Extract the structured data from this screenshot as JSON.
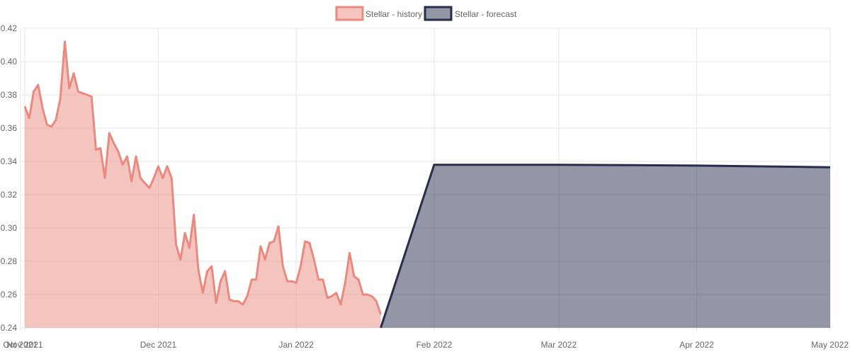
{
  "chart_data": {
    "type": "area",
    "legend": {
      "position": "top"
    },
    "grid": true,
    "y_ticks": [
      "0.24",
      "0.26",
      "0.28",
      "0.30",
      "0.32",
      "0.34",
      "0.36",
      "0.38",
      "0.40",
      "0.42"
    ],
    "ylim": [
      0.24,
      0.42
    ],
    "xlim": [
      "2021-11-01",
      "2022-05-01"
    ],
    "x_ticks": [
      {
        "date": "2021-10-31",
        "label": "Oct 2021"
      },
      {
        "date": "2021-11-01",
        "label": "Nov 2021"
      },
      {
        "date": "2021-12-01",
        "label": "Dec 2021"
      },
      {
        "date": "2022-01-01",
        "label": "Jan 2022"
      },
      {
        "date": "2022-02-01",
        "label": "Feb 2022"
      },
      {
        "date": "2022-03-01",
        "label": "Mar 2022"
      },
      {
        "date": "2022-04-01",
        "label": "Apr 2022"
      },
      {
        "date": "2022-05-01",
        "label": "May 2022"
      }
    ],
    "series": [
      {
        "name": "Stellar - history",
        "color": "#ea8a7f",
        "fill": "rgba(234,138,127,0.5)",
        "points": [
          [
            "2021-11-01",
            0.373
          ],
          [
            "2021-11-02",
            0.366
          ],
          [
            "2021-11-03",
            0.382
          ],
          [
            "2021-11-04",
            0.386
          ],
          [
            "2021-11-05",
            0.372
          ],
          [
            "2021-11-06",
            0.362
          ],
          [
            "2021-11-07",
            0.361
          ],
          [
            "2021-11-08",
            0.365
          ],
          [
            "2021-11-09",
            0.378
          ],
          [
            "2021-11-10",
            0.412
          ],
          [
            "2021-11-11",
            0.384
          ],
          [
            "2021-11-12",
            0.393
          ],
          [
            "2021-11-13",
            0.382
          ],
          [
            "2021-11-14",
            0.381
          ],
          [
            "2021-11-15",
            0.38
          ],
          [
            "2021-11-16",
            0.379
          ],
          [
            "2021-11-17",
            0.347
          ],
          [
            "2021-11-18",
            0.348
          ],
          [
            "2021-11-19",
            0.33
          ],
          [
            "2021-11-20",
            0.357
          ],
          [
            "2021-11-21",
            0.351
          ],
          [
            "2021-11-22",
            0.346
          ],
          [
            "2021-11-23",
            0.338
          ],
          [
            "2021-11-24",
            0.343
          ],
          [
            "2021-11-25",
            0.328
          ],
          [
            "2021-11-26",
            0.343
          ],
          [
            "2021-11-27",
            0.33
          ],
          [
            "2021-11-28",
            0.327
          ],
          [
            "2021-11-29",
            0.324
          ],
          [
            "2021-11-30",
            0.33
          ],
          [
            "2021-12-01",
            0.337
          ],
          [
            "2021-12-02",
            0.33
          ],
          [
            "2021-12-03",
            0.337
          ],
          [
            "2021-12-04",
            0.33
          ],
          [
            "2021-12-05",
            0.29
          ],
          [
            "2021-12-06",
            0.281
          ],
          [
            "2021-12-07",
            0.297
          ],
          [
            "2021-12-08",
            0.288
          ],
          [
            "2021-12-09",
            0.308
          ],
          [
            "2021-12-10",
            0.275
          ],
          [
            "2021-12-11",
            0.261
          ],
          [
            "2021-12-12",
            0.274
          ],
          [
            "2021-12-13",
            0.277
          ],
          [
            "2021-12-14",
            0.255
          ],
          [
            "2021-12-15",
            0.268
          ],
          [
            "2021-12-16",
            0.274
          ],
          [
            "2021-12-17",
            0.257
          ],
          [
            "2021-12-18",
            0.256
          ],
          [
            "2021-12-19",
            0.256
          ],
          [
            "2021-12-20",
            0.254
          ],
          [
            "2021-12-21",
            0.259
          ],
          [
            "2021-12-22",
            0.269
          ],
          [
            "2021-12-23",
            0.269
          ],
          [
            "2021-12-24",
            0.289
          ],
          [
            "2021-12-25",
            0.281
          ],
          [
            "2021-12-26",
            0.291
          ],
          [
            "2021-12-27",
            0.292
          ],
          [
            "2021-12-28",
            0.301
          ],
          [
            "2021-12-29",
            0.277
          ],
          [
            "2021-12-30",
            0.268
          ],
          [
            "2021-12-31",
            0.268
          ],
          [
            "2022-01-01",
            0.267
          ],
          [
            "2022-01-02",
            0.277
          ],
          [
            "2022-01-03",
            0.292
          ],
          [
            "2022-01-04",
            0.291
          ],
          [
            "2022-01-05",
            0.281
          ],
          [
            "2022-01-06",
            0.269
          ],
          [
            "2022-01-07",
            0.269
          ],
          [
            "2022-01-08",
            0.258
          ],
          [
            "2022-01-09",
            0.259
          ],
          [
            "2022-01-10",
            0.261
          ],
          [
            "2022-01-11",
            0.254
          ],
          [
            "2022-01-12",
            0.267
          ],
          [
            "2022-01-13",
            0.285
          ],
          [
            "2022-01-14",
            0.271
          ],
          [
            "2022-01-15",
            0.269
          ],
          [
            "2022-01-16",
            0.26
          ],
          [
            "2022-01-17",
            0.26
          ],
          [
            "2022-01-18",
            0.259
          ],
          [
            "2022-01-19",
            0.256
          ],
          [
            "2022-01-20",
            0.248
          ]
        ]
      },
      {
        "name": "Stellar - forecast",
        "color": "#272d4a",
        "fill": "rgba(39,45,74,0.5)",
        "points": [
          [
            "2022-01-20",
            0.24
          ],
          [
            "2022-02-01",
            0.338
          ],
          [
            "2022-03-01",
            0.338
          ],
          [
            "2022-04-01",
            0.3375
          ],
          [
            "2022-05-01",
            0.3365
          ]
        ]
      }
    ]
  }
}
